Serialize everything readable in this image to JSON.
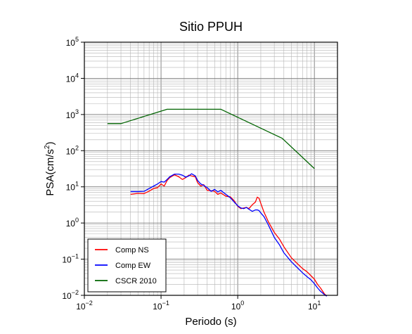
{
  "chart_data": {
    "type": "line",
    "title": "Sitio PPUH",
    "xlabel": "Periodo (s)",
    "ylabel_main": "PSA(cm/s",
    "ylabel_sup": "2",
    "ylabel_close": ")",
    "x_scale": "log",
    "y_scale": "log",
    "xlim": [
      0.01,
      20
    ],
    "ylim": [
      0.01,
      100000
    ],
    "grid": true,
    "legend_position": "bottom-left",
    "x_ticks": [
      {
        "base": "10",
        "exp": "−2",
        "value": 0.01
      },
      {
        "base": "10",
        "exp": "−1",
        "value": 0.1
      },
      {
        "base": "10",
        "exp": "0",
        "value": 1
      },
      {
        "base": "10",
        "exp": "1",
        "value": 10
      }
    ],
    "y_ticks": [
      {
        "base": "10",
        "exp": "−2",
        "value": 0.01
      },
      {
        "base": "10",
        "exp": "−1",
        "value": 0.1
      },
      {
        "base": "10",
        "exp": "0",
        "value": 1
      },
      {
        "base": "10",
        "exp": "1",
        "value": 10
      },
      {
        "base": "10",
        "exp": "2",
        "value": 100
      },
      {
        "base": "10",
        "exp": "3",
        "value": 1000
      },
      {
        "base": "10",
        "exp": "4",
        "value": 10000
      },
      {
        "base": "10",
        "exp": "5",
        "value": 100000
      }
    ],
    "series": [
      {
        "name": "Comp NS",
        "color": "#ff0000",
        "points": [
          [
            0.04,
            6.2
          ],
          [
            0.05,
            6.6
          ],
          [
            0.06,
            6.5
          ],
          [
            0.07,
            7.6
          ],
          [
            0.08,
            9.0
          ],
          [
            0.09,
            9.5
          ],
          [
            0.1,
            12.0
          ],
          [
            0.11,
            10.5
          ],
          [
            0.12,
            15.0
          ],
          [
            0.13,
            18.0
          ],
          [
            0.15,
            21.5
          ],
          [
            0.17,
            19.0
          ],
          [
            0.19,
            16.0
          ],
          [
            0.21,
            18.0
          ],
          [
            0.23,
            21.0
          ],
          [
            0.25,
            20.0
          ],
          [
            0.28,
            19.0
          ],
          [
            0.3,
            13.0
          ],
          [
            0.33,
            10.5
          ],
          [
            0.36,
            11.5
          ],
          [
            0.4,
            8.0
          ],
          [
            0.45,
            7.8
          ],
          [
            0.5,
            7.5
          ],
          [
            0.55,
            6.2
          ],
          [
            0.6,
            6.8
          ],
          [
            0.7,
            5.5
          ],
          [
            0.8,
            5.3
          ],
          [
            0.9,
            4.1
          ],
          [
            1.0,
            2.9
          ],
          [
            1.1,
            2.5
          ],
          [
            1.2,
            2.6
          ],
          [
            1.3,
            2.7
          ],
          [
            1.4,
            2.5
          ],
          [
            1.55,
            3.2
          ],
          [
            1.7,
            3.8
          ],
          [
            1.8,
            5.2
          ],
          [
            1.9,
            4.8
          ],
          [
            2.0,
            3.5
          ],
          [
            2.2,
            2.0
          ],
          [
            2.5,
            1.1
          ],
          [
            3.0,
            0.55
          ],
          [
            3.5,
            0.36
          ],
          [
            4.0,
            0.22
          ],
          [
            5.0,
            0.11
          ],
          [
            6.0,
            0.075
          ],
          [
            7.0,
            0.055
          ],
          [
            8.0,
            0.045
          ],
          [
            9.0,
            0.035
          ],
          [
            10.0,
            0.028
          ],
          [
            11.0,
            0.02
          ],
          [
            12.0,
            0.016
          ],
          [
            13.5,
            0.011
          ],
          [
            14.5,
            0.0095
          ]
        ]
      },
      {
        "name": "Comp EW",
        "color": "#0000ff",
        "points": [
          [
            0.04,
            7.4
          ],
          [
            0.05,
            7.4
          ],
          [
            0.06,
            7.5
          ],
          [
            0.07,
            9.0
          ],
          [
            0.08,
            10.5
          ],
          [
            0.09,
            12.0
          ],
          [
            0.1,
            14.0
          ],
          [
            0.11,
            13.5
          ],
          [
            0.12,
            16.0
          ],
          [
            0.13,
            19.0
          ],
          [
            0.15,
            22.5
          ],
          [
            0.17,
            22.5
          ],
          [
            0.19,
            21.0
          ],
          [
            0.21,
            18.5
          ],
          [
            0.23,
            20.0
          ],
          [
            0.25,
            23.0
          ],
          [
            0.28,
            20.0
          ],
          [
            0.3,
            15.0
          ],
          [
            0.33,
            12.0
          ],
          [
            0.36,
            11.0
          ],
          [
            0.4,
            9.5
          ],
          [
            0.45,
            7.5
          ],
          [
            0.5,
            8.5
          ],
          [
            0.55,
            7.2
          ],
          [
            0.6,
            8.0
          ],
          [
            0.7,
            6.2
          ],
          [
            0.8,
            5.0
          ],
          [
            0.9,
            3.8
          ],
          [
            1.0,
            3.0
          ],
          [
            1.1,
            2.6
          ],
          [
            1.2,
            2.5
          ],
          [
            1.3,
            2.7
          ],
          [
            1.4,
            2.4
          ],
          [
            1.55,
            2.1
          ],
          [
            1.7,
            2.3
          ],
          [
            1.8,
            2.3
          ],
          [
            1.9,
            2.2
          ],
          [
            2.0,
            1.9
          ],
          [
            2.2,
            1.5
          ],
          [
            2.5,
            0.9
          ],
          [
            3.0,
            0.4
          ],
          [
            3.5,
            0.25
          ],
          [
            4.0,
            0.15
          ],
          [
            5.0,
            0.085
          ],
          [
            6.0,
            0.058
          ],
          [
            7.0,
            0.042
          ],
          [
            8.0,
            0.033
          ],
          [
            9.0,
            0.027
          ],
          [
            10.0,
            0.021
          ],
          [
            11.0,
            0.016
          ],
          [
            12.0,
            0.013
          ],
          [
            13.5,
            0.0105
          ],
          [
            14.5,
            0.0095
          ]
        ]
      },
      {
        "name": "CSCR 2010",
        "color": "#006400",
        "points": [
          [
            0.02,
            560
          ],
          [
            0.03,
            560
          ],
          [
            0.12,
            1400
          ],
          [
            0.6,
            1400
          ],
          [
            3.8,
            220
          ],
          [
            10.0,
            32
          ]
        ]
      }
    ]
  }
}
